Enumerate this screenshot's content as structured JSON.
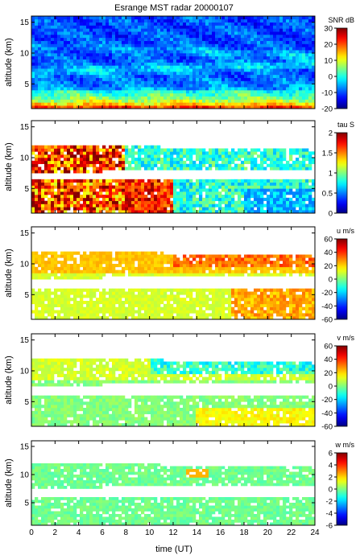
{
  "title": "Esrange MST radar 20000107",
  "xlabel": "time (UT)",
  "colors": {
    "colormap": [
      "#00007f",
      "#0000ff",
      "#007fff",
      "#00ffff",
      "#7fff7f",
      "#ffff00",
      "#ff7f00",
      "#ff0000",
      "#7f0000"
    ]
  },
  "chart_data": [
    {
      "type": "heatmap",
      "title": "Esrange MST radar 20000107",
      "ylabel": "altitude (km)",
      "xlabel": "",
      "xlim": [
        0,
        24
      ],
      "ylim": [
        1,
        16
      ],
      "x_ticks": [
        0,
        2,
        4,
        6,
        8,
        10,
        12,
        14,
        16,
        18,
        20,
        22,
        24
      ],
      "y_ticks": [
        5,
        10,
        15
      ],
      "colorbar": {
        "label": "SNR dB",
        "range": [
          -20,
          30
        ],
        "ticks": [
          -20,
          -10,
          0,
          10,
          20,
          30
        ]
      },
      "description_values": "SNR high (20-30 dB) near ground below 3 km, decreasing with altitude to about -15 dB above 13 km"
    },
    {
      "type": "heatmap",
      "ylabel": "altitude (km)",
      "xlim": [
        0,
        24
      ],
      "ylim": [
        1,
        16
      ],
      "x_ticks": [
        0,
        2,
        4,
        6,
        8,
        10,
        12,
        14,
        16,
        18,
        20,
        22,
        24
      ],
      "y_ticks": [
        5,
        10,
        15
      ],
      "colorbar": {
        "label": "tau S",
        "range": [
          0,
          2
        ],
        "ticks": [
          0,
          0.5,
          1,
          1.5,
          2
        ]
      }
    },
    {
      "type": "heatmap",
      "ylabel": "altitude (km)",
      "xlim": [
        0,
        24
      ],
      "ylim": [
        1,
        16
      ],
      "x_ticks": [
        0,
        2,
        4,
        6,
        8,
        10,
        12,
        14,
        16,
        18,
        20,
        22,
        24
      ],
      "y_ticks": [
        5,
        10,
        15
      ],
      "colorbar": {
        "label": "u m/s",
        "range": [
          -60,
          60
        ],
        "ticks": [
          -60,
          -40,
          -20,
          0,
          20,
          40,
          60
        ]
      }
    },
    {
      "type": "heatmap",
      "ylabel": "altitude (km)",
      "xlim": [
        0,
        24
      ],
      "ylim": [
        1,
        16
      ],
      "x_ticks": [
        0,
        2,
        4,
        6,
        8,
        10,
        12,
        14,
        16,
        18,
        20,
        22,
        24
      ],
      "y_ticks": [
        5,
        10,
        15
      ],
      "colorbar": {
        "label": "v m/s",
        "range": [
          -60,
          60
        ],
        "ticks": [
          -60,
          -40,
          -20,
          0,
          20,
          40,
          60
        ]
      }
    },
    {
      "type": "heatmap",
      "ylabel": "altitude (km)",
      "xlabel": "time (UT)",
      "xlim": [
        0,
        24
      ],
      "ylim": [
        1,
        16
      ],
      "x_ticks": [
        0,
        2,
        4,
        6,
        8,
        10,
        12,
        14,
        16,
        18,
        20,
        22,
        24
      ],
      "y_ticks": [
        5,
        10,
        15
      ],
      "colorbar": {
        "label": "w m/s",
        "range": [
          -6,
          6
        ],
        "ticks": [
          -6,
          -4,
          -2,
          0,
          2,
          4,
          6
        ]
      }
    }
  ]
}
